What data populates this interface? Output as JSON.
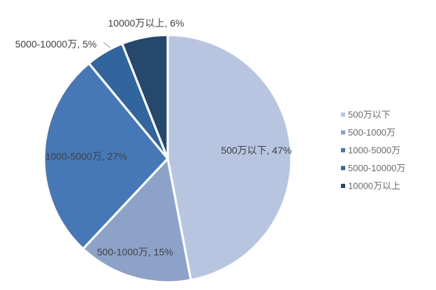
{
  "chart_data": {
    "type": "pie",
    "title": "",
    "categories": [
      "500万以下",
      "500-1000万",
      "1000-5000万",
      "5000-10000万",
      "10000万以上"
    ],
    "values": [
      47,
      15,
      27,
      5,
      6
    ],
    "unit": "%",
    "start_angle_deg": 0,
    "direction": "clockwise",
    "slices": [
      {
        "label": "500万以下",
        "value": 47,
        "data_label": "500万以下, 47%",
        "color": "#b7c5e1",
        "label_placement": "inside"
      },
      {
        "label": "500-1000万",
        "value": 15,
        "data_label": "500-1000万, 15%",
        "color": "#8da2c9",
        "label_placement": "inside"
      },
      {
        "label": "1000-5000万",
        "value": 27,
        "data_label": "1000-5000万, 27%",
        "color": "#4678b8",
        "label_placement": "inside"
      },
      {
        "label": "5000-10000万",
        "value": 5,
        "data_label": "5000-10000万, 5%",
        "color": "#32649e",
        "label_placement": "outside"
      },
      {
        "label": "10000万以上",
        "value": 6,
        "data_label": "10000万以上, 6%",
        "color": "#25486c",
        "label_placement": "outside"
      }
    ],
    "legend": {
      "position": "right",
      "entries": [
        "500万以下",
        "500-1000万",
        "1000-5000万",
        "5000-10000万",
        "10000万以上"
      ],
      "text_color": "#6b6b6b"
    },
    "data_label_color": "#3f3f3f",
    "leader_line_color": "#a0a0a0",
    "separator_color": "#ffffff",
    "background": "#ffffff"
  }
}
